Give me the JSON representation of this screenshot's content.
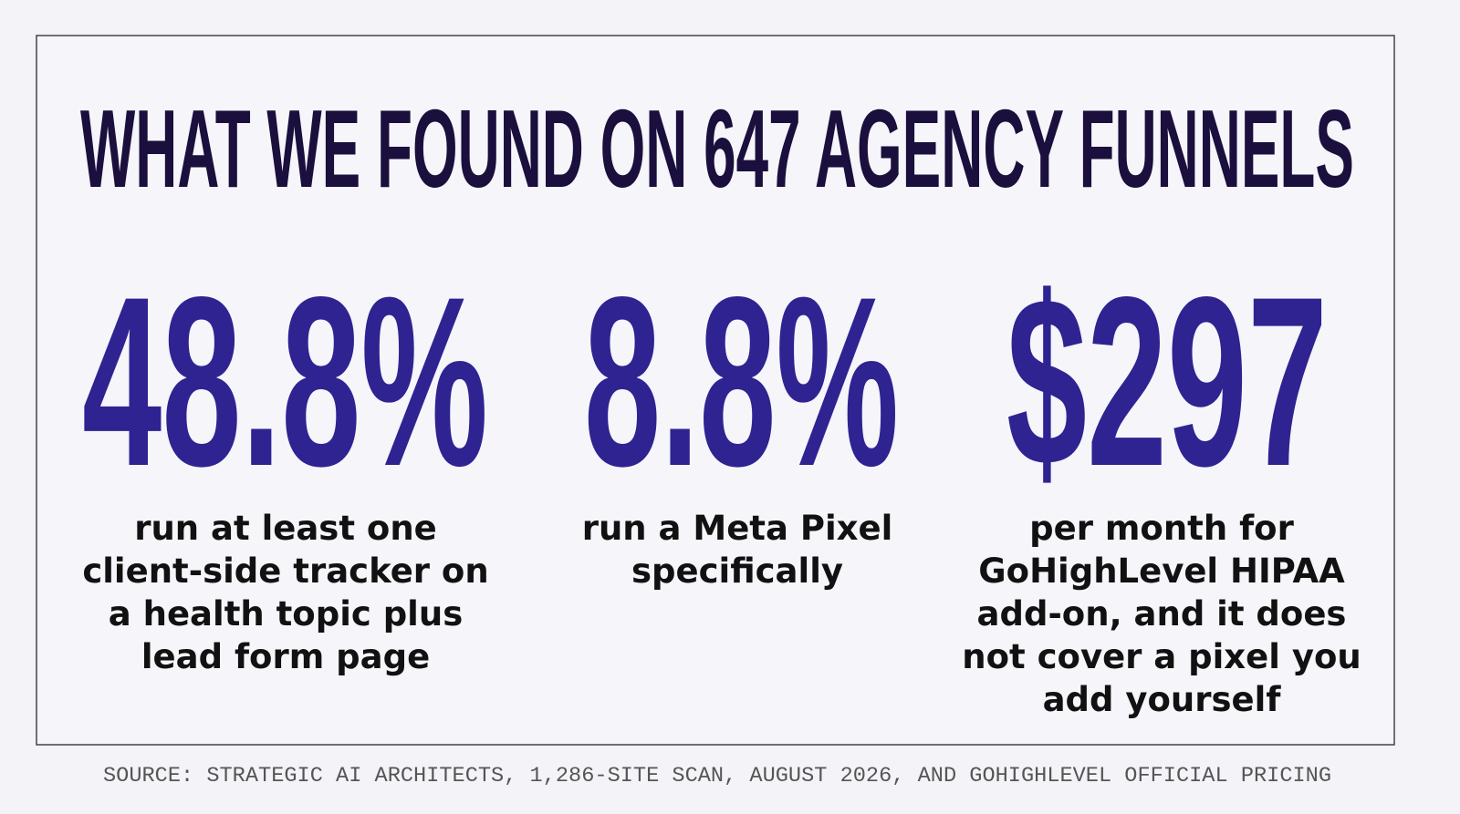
{
  "title": "WHAT WE FOUND ON 647 AGENCY FUNNELS",
  "stats": [
    {
      "value": "48.8%",
      "description": [
        "run at least one",
        "client-side tracker on",
        "a health topic plus",
        "lead form page"
      ]
    },
    {
      "value": "8.8%",
      "description": [
        "run a Meta Pixel",
        "specifically"
      ]
    },
    {
      "value": "$297",
      "description": [
        "per month for",
        "GoHighLevel HIPAA",
        "add-on, and it does",
        "not cover a pixel you",
        "add yourself"
      ]
    }
  ],
  "source": "SOURCE: STRATEGIC AI ARCHITECTS, 1,286-SITE SCAN, AUGUST 2026, AND GOHIGHLEVEL OFFICIAL PRICING"
}
